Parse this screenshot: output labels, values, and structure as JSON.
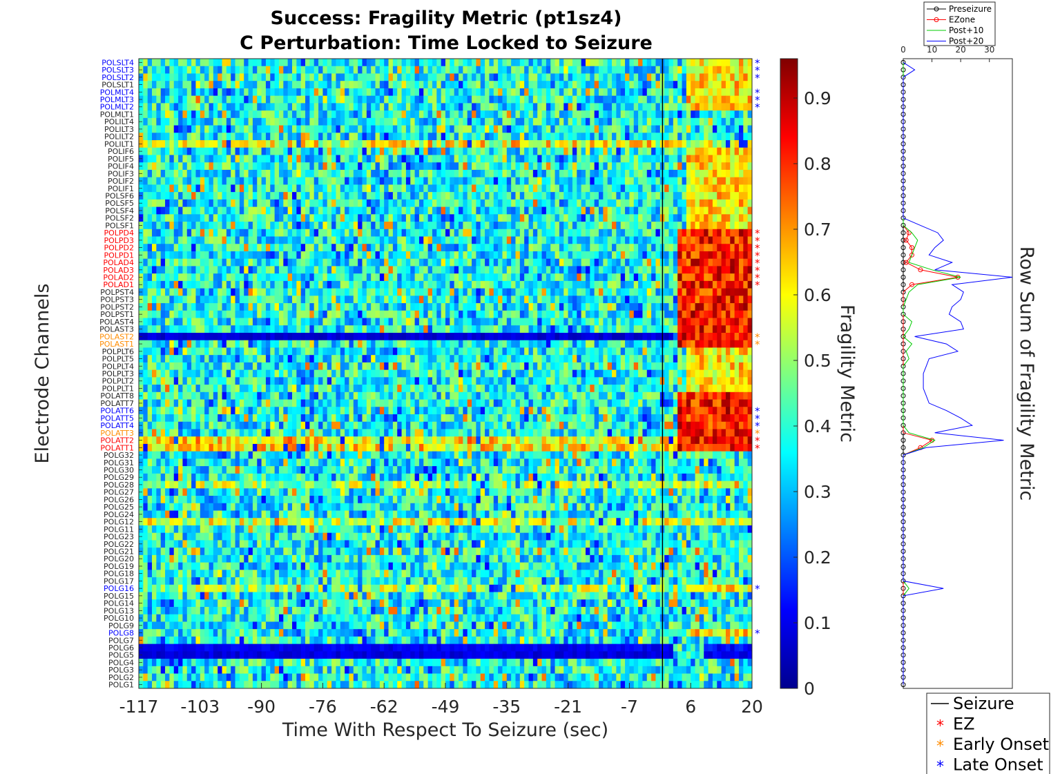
{
  "chart_data": [
    {
      "type": "heatmap",
      "title": [
        "Success: Fragility Metric (pt1sz4)",
        "C Perturbation:  Time Locked to Seizure"
      ],
      "xlabel": "Time With Respect To Seizure (sec)",
      "ylabel": "Electrode Channels",
      "x_ticks": [
        "-117",
        "-103",
        "-90",
        "-76",
        "-62",
        "-49",
        "-35",
        "-21",
        "-7",
        "6",
        "20"
      ],
      "x_range": [
        -117,
        20
      ],
      "seizure_onset_x": 0,
      "colorbar": {
        "label": "Fragility Metric",
        "range": [
          0,
          0.96
        ],
        "ticks": [
          0,
          0.1,
          0.2,
          0.3,
          0.4,
          0.5,
          0.6,
          0.7,
          0.8,
          0.9
        ],
        "tick_labels": [
          "0",
          "0.1",
          "0.2",
          "0.3",
          "0.4",
          "0.5",
          "0.6",
          "0.7",
          "0.8",
          "0.9"
        ],
        "colormap": "jet"
      },
      "channels": [
        "POLSLT4",
        "POLSLT3",
        "POLSLT2",
        "POLSLT1",
        "POLMLT4",
        "POLMLT3",
        "POLMLT2",
        "POLMLT1",
        "POLILT4",
        "POLILT3",
        "POLILT2",
        "POLILT1",
        "POLIF6",
        "POLIF5",
        "POLIF4",
        "POLIF3",
        "POLIF2",
        "POLIF1",
        "POLSF6",
        "POLSF5",
        "POLSF4",
        "POLSF2",
        "POLSF1",
        "POLPD4",
        "POLPD3",
        "POLPD2",
        "POLPD1",
        "POLAD4",
        "POLAD3",
        "POLAD2",
        "POLAD1",
        "POLPST4",
        "POLPST3",
        "POLPST2",
        "POLPST1",
        "POLAST4",
        "POLAST3",
        "POLAST2",
        "POLAST1",
        "POLPLT6",
        "POLPLT5",
        "POLPLT4",
        "POLPLT3",
        "POLPLT2",
        "POLPLT1",
        "POLATT8",
        "POLATT7",
        "POLATT6",
        "POLATT5",
        "POLATT4",
        "POLATT3",
        "POLATT2",
        "POLATT1",
        "POLG32",
        "POLG31",
        "POLG30",
        "POLG29",
        "POLG28",
        "POLG27",
        "POLG26",
        "POLG25",
        "POLG24",
        "POLG12",
        "POLG11",
        "POLG23",
        "POLG22",
        "POLG21",
        "POLG20",
        "POLG19",
        "POLG18",
        "POLG17",
        "POLG16",
        "POLG15",
        "POLG14",
        "POLG13",
        "POLG10",
        "POLG9",
        "POLG8",
        "POLG7",
        "POLG6",
        "POLG5",
        "POLG4",
        "POLG3",
        "POLG2",
        "POLG1"
      ],
      "channel_groups": {
        "ez": [
          "POLPD4",
          "POLPD3",
          "POLPD2",
          "POLPD1",
          "POLAD4",
          "POLAD3",
          "POLAD2",
          "POLAD1",
          "POLATT2",
          "POLATT1"
        ],
        "early_onset": [
          "POLAST2",
          "POLAST1",
          "POLATT3"
        ],
        "late_onset": [
          "POLSLT4",
          "POLSLT3",
          "POLSLT2",
          "POLMLT4",
          "POLMLT3",
          "POLMLT2",
          "POLATT6",
          "POLATT5",
          "POLATT4",
          "POLG16",
          "POLG8"
        ]
      },
      "channel_mean_fragility": {
        "low_persistent": {
          "POLAST2": 0.05,
          "POLG6": 0.08,
          "POLG5": 0.06
        },
        "high_persistent": {
          "POLILT1": 0.58,
          "POLATT2": 0.62,
          "POLATT1": 0.6,
          "POLG28": 0.5,
          "POLG12": 0.55,
          "POLG16": 0.5
        },
        "post_onset_peak": 0.95
      },
      "colors": {
        "ez": "#ff0000",
        "early_onset": "#ff8c00",
        "late_onset": "#0000ff",
        "seizure_line": "#000000"
      }
    },
    {
      "type": "line",
      "ylabel": "Row Sum of Fragility Metric",
      "x_ticks": [
        "0",
        "10",
        "20",
        "30"
      ],
      "x_range": [
        0,
        38
      ],
      "legend": [
        "Preseizure",
        "EZone",
        "Post+10",
        "Post+20"
      ],
      "series": [
        {
          "name": "Preseizure",
          "color": "#000000",
          "marker": "circle",
          "values": [
            0,
            0,
            0,
            0,
            0,
            0,
            0,
            0,
            0,
            0,
            0,
            0,
            0,
            0,
            0,
            0,
            0,
            0,
            0,
            0,
            0,
            0,
            0,
            0,
            0,
            0,
            0,
            0,
            0,
            0,
            0,
            0,
            0,
            0,
            0,
            0,
            0,
            0,
            0,
            0,
            0,
            0,
            0,
            0,
            0,
            0,
            0,
            0,
            0,
            0,
            0,
            0,
            0,
            0,
            0,
            0,
            0,
            0,
            0,
            0,
            0,
            0,
            0,
            0,
            0,
            0,
            0,
            0,
            0,
            0,
            0,
            0,
            0,
            0,
            0,
            0,
            0,
            0,
            0,
            0,
            0,
            0,
            0,
            0,
            0
          ]
        },
        {
          "name": "EZone",
          "color": "#ff0000",
          "marker": "circle",
          "values": [
            0,
            0,
            0,
            0,
            0,
            0,
            0,
            0,
            0,
            0,
            0,
            0,
            0,
            0,
            0,
            0,
            0,
            0,
            0,
            0,
            0,
            0,
            0,
            2,
            1,
            3,
            3,
            1,
            6,
            19,
            3,
            0,
            0,
            0,
            0,
            0,
            0,
            0,
            0,
            0,
            0,
            0,
            0,
            0,
            0,
            0,
            0,
            0,
            0,
            0,
            0,
            10,
            6,
            0,
            0,
            0,
            0,
            0,
            0,
            0,
            0,
            0,
            0,
            0,
            0,
            0,
            0,
            0,
            0,
            0,
            0,
            0,
            0,
            0,
            0,
            0,
            0,
            0,
            0,
            0,
            0,
            0,
            0,
            0,
            0
          ]
        },
        {
          "name": "Post+10",
          "color": "#00cc00",
          "values": [
            0,
            0,
            0,
            0,
            0,
            0,
            0,
            0,
            0,
            0,
            0,
            0,
            0,
            0,
            0,
            0,
            0,
            0,
            0,
            0,
            0,
            0,
            0,
            3,
            5,
            4,
            3,
            2,
            10,
            20,
            5,
            2,
            1,
            0,
            0,
            3,
            2,
            0,
            3,
            1,
            2,
            0,
            0,
            0,
            0,
            0,
            0,
            0,
            0,
            0,
            2,
            11,
            7,
            0,
            0,
            0,
            0,
            0,
            0,
            0,
            0,
            0,
            0,
            0,
            0,
            0,
            0,
            0,
            0,
            0,
            0,
            2,
            0,
            0,
            0,
            0,
            0,
            0,
            0,
            0,
            0,
            0,
            0,
            0,
            0
          ]
        },
        {
          "name": "Post+20",
          "color": "#0000ff",
          "values": [
            0,
            4,
            0,
            0,
            0,
            0,
            0,
            0,
            0,
            0,
            0,
            0,
            0,
            0,
            0,
            0,
            0,
            0,
            0,
            0,
            0,
            0,
            6,
            12,
            14,
            11,
            9,
            17,
            11,
            38,
            17,
            21,
            20,
            17,
            16,
            20,
            21,
            4,
            15,
            19,
            9,
            8,
            7,
            7,
            7,
            8,
            9,
            15,
            20,
            24,
            11,
            35,
            8,
            0,
            0,
            0,
            0,
            0,
            0,
            0,
            0,
            0,
            0,
            0,
            0,
            0,
            0,
            0,
            0,
            0,
            0,
            14,
            0,
            0,
            0,
            0,
            0,
            0,
            0,
            0,
            0,
            0,
            0,
            0,
            0
          ]
        }
      ]
    }
  ],
  "legend_main": {
    "items": [
      {
        "label": "Seizure",
        "marker": "line",
        "color": "#000000"
      },
      {
        "label": "EZ",
        "marker": "*",
        "color": "#ff0000"
      },
      {
        "label": "Early Onset",
        "marker": "*",
        "color": "#ff8c00"
      },
      {
        "label": "Late Onset",
        "marker": "*",
        "color": "#0000ff"
      }
    ]
  }
}
